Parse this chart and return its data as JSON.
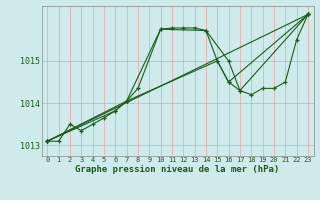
{
  "xlabel": "Graphe pression niveau de la mer (hPa)",
  "background_color": "#ceeaea",
  "grid_color": "#e8a0a0",
  "line_color": "#1a5c1a",
  "spine_color": "#888888",
  "xlim": [
    -0.5,
    23.5
  ],
  "ylim": [
    1012.75,
    1016.3
  ],
  "yticks": [
    1013,
    1014,
    1015
  ],
  "xticks": [
    0,
    1,
    2,
    3,
    4,
    5,
    6,
    7,
    8,
    9,
    10,
    11,
    12,
    13,
    14,
    15,
    16,
    17,
    18,
    19,
    20,
    21,
    22,
    23
  ],
  "lines": [
    {
      "x": [
        0,
        1,
        2,
        3,
        4,
        5,
        6,
        7,
        10,
        11,
        12,
        13,
        14,
        15,
        16,
        17,
        18,
        19,
        20,
        21,
        22,
        23
      ],
      "y": [
        1013.1,
        1013.1,
        1013.5,
        1013.35,
        1013.5,
        1013.65,
        1013.82,
        1014.05,
        1015.75,
        1015.78,
        1015.78,
        1015.78,
        1015.72,
        1015.0,
        1014.5,
        1014.3,
        1014.2,
        1014.35,
        1014.35,
        1014.5,
        1015.5,
        1016.1
      ]
    },
    {
      "x": [
        0,
        7,
        8,
        10,
        14,
        16,
        17,
        23
      ],
      "y": [
        1013.1,
        1014.05,
        1014.35,
        1015.75,
        1015.72,
        1015.0,
        1014.3,
        1016.1
      ]
    },
    {
      "x": [
        0,
        23
      ],
      "y": [
        1013.1,
        1016.1
      ]
    },
    {
      "x": [
        0,
        6,
        7,
        15,
        16,
        23
      ],
      "y": [
        1013.1,
        1013.82,
        1014.05,
        1015.0,
        1014.5,
        1016.1
      ]
    }
  ]
}
